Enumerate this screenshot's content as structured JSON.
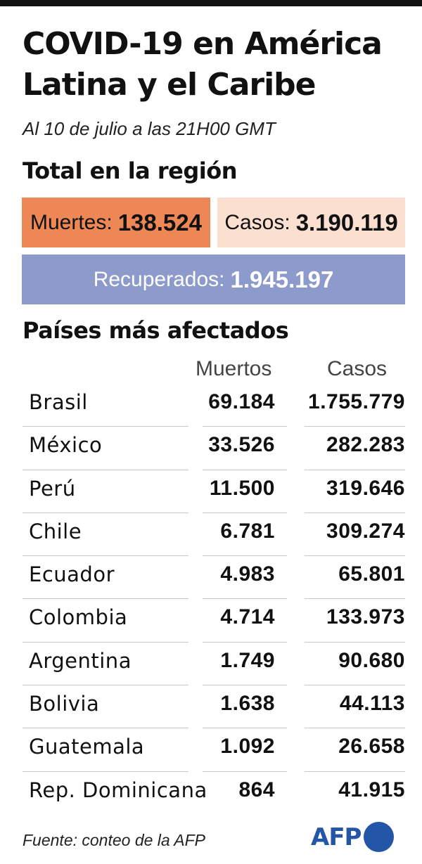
{
  "title_line1": "COVID-19 en América",
  "title_line2": "Latina y el Caribe",
  "subtitle": "Al 10 de julio a las 21H00 GMT",
  "region": {
    "heading": "Total en la región",
    "deaths_label": "Muertes:",
    "deaths_value": "138.524",
    "cases_label": "Casos:",
    "cases_value": "3.190.119",
    "recovered_label": "Recuperados:",
    "recovered_value": "1.945.197",
    "colors": {
      "deaths": "#ee8756",
      "cases": "#fbe0d2",
      "recovered": "#8c9bcc"
    }
  },
  "countries": {
    "heading": "Países más afectados",
    "col_deaths": "Muertos",
    "col_cases": "Casos",
    "rows": [
      {
        "name": "Brasil",
        "deaths": "69.184",
        "cases": "1.755.779"
      },
      {
        "name": "México",
        "deaths": "33.526",
        "cases": "282.283"
      },
      {
        "name": "Perú",
        "deaths": "11.500",
        "cases": "319.646"
      },
      {
        "name": "Chile",
        "deaths": "6.781",
        "cases": "309.274"
      },
      {
        "name": "Ecuador",
        "deaths": "4.983",
        "cases": "65.801"
      },
      {
        "name": "Colombia",
        "deaths": "4.714",
        "cases": "133.973"
      },
      {
        "name": "Argentina",
        "deaths": "1.749",
        "cases": "90.680"
      },
      {
        "name": "Bolivia",
        "deaths": "1.638",
        "cases": "44.113"
      },
      {
        "name": "Guatemala",
        "deaths": "1.092",
        "cases": "26.658"
      },
      {
        "name": "Rep. Dominicana",
        "deaths": "864",
        "cases": "41.915"
      }
    ]
  },
  "footer": {
    "source": "Fuente: conteo de la AFP",
    "logo_text": "AFP",
    "logo_color": "#2356a6"
  }
}
